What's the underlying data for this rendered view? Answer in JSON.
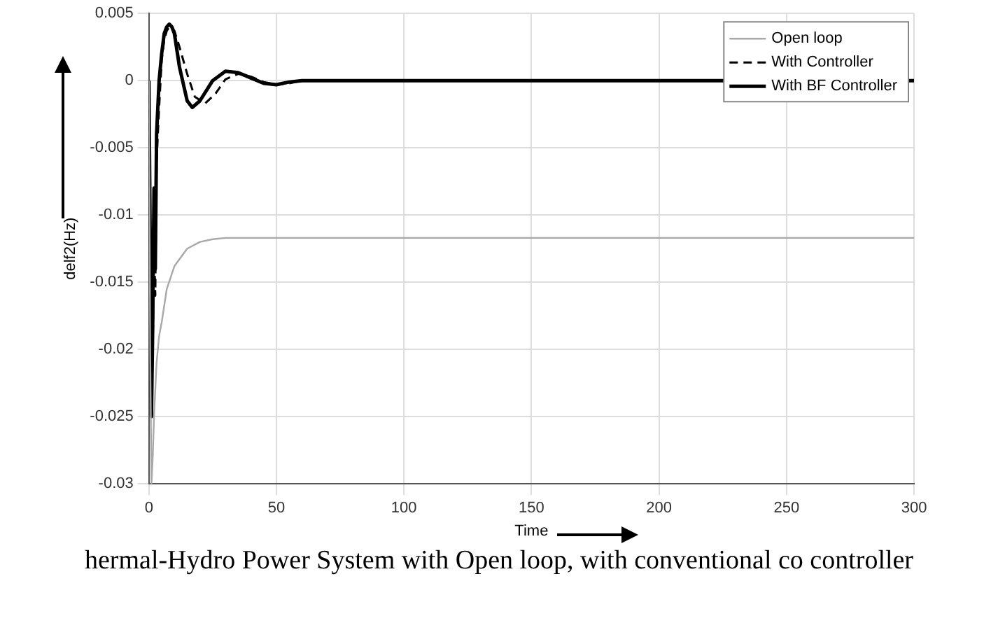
{
  "chart_data": {
    "type": "line",
    "xlabel": "Time",
    "ylabel": "delf2(Hz)",
    "annotations": [
      "hermal-Hydro Power System with Open loop, with conventional co controller"
    ],
    "xlim": [
      0,
      300
    ],
    "xticks": [
      0,
      50,
      100,
      150,
      200,
      250,
      300
    ],
    "ylim": [
      -0.03,
      0.005
    ],
    "yticks": [
      -0.03,
      -0.025,
      -0.02,
      -0.015,
      -0.01,
      -0.005,
      0,
      0.005
    ],
    "grid": true,
    "legend": "top right",
    "marker": "none",
    "series": [
      {
        "name": "Open loop",
        "color": "#a8a8a8",
        "line_style": "solid",
        "x": [
          0,
          0.5,
          1,
          1.5,
          2,
          3,
          4,
          5,
          7,
          10,
          15,
          20,
          25,
          30,
          40,
          60,
          100,
          150,
          200,
          250,
          300
        ],
        "values": [
          0,
          -0.02,
          -0.03,
          -0.028,
          -0.025,
          -0.021,
          -0.019,
          -0.018,
          -0.0155,
          -0.0138,
          -0.0125,
          -0.012,
          -0.0118,
          -0.0117,
          -0.0117,
          -0.0117,
          -0.0117,
          -0.0117,
          -0.0117,
          -0.0117,
          -0.0117
        ]
      },
      {
        "name": "With Controller",
        "color": "#000000",
        "line_style": "dashed",
        "x": [
          0,
          0.5,
          1,
          1.5,
          2,
          2.5,
          3,
          4,
          5,
          6,
          7,
          8,
          10,
          12,
          15,
          18,
          22,
          26,
          30,
          35,
          40,
          45,
          50,
          55,
          60,
          70,
          80,
          100,
          150,
          200,
          300
        ],
        "values": [
          0,
          -0.015,
          -0.024,
          -0.02,
          -0.012,
          -0.016,
          -0.006,
          -0.002,
          0.0015,
          0.003,
          0.0037,
          0.004,
          0.0037,
          0.0025,
          0.0005,
          -0.0012,
          -0.0017,
          -0.001,
          0.0001,
          0.0005,
          0.0003,
          -0.0001,
          -0.0003,
          -0.0002,
          0,
          0,
          0,
          0,
          0,
          0,
          0
        ]
      },
      {
        "name": "With BF Controller",
        "color": "#000000",
        "line_style": "solid",
        "x": [
          0,
          0.5,
          1,
          1.5,
          2,
          2.5,
          3,
          4,
          5,
          6,
          7,
          8,
          9,
          10,
          12,
          15,
          17,
          20,
          25,
          30,
          35,
          40,
          45,
          50,
          55,
          60,
          80,
          100,
          150,
          200,
          300
        ],
        "values": [
          0,
          -0.012,
          -0.025,
          -0.018,
          -0.008,
          -0.014,
          -0.004,
          0,
          0.002,
          0.0035,
          0.004,
          0.0042,
          0.004,
          0.0035,
          0.001,
          -0.0015,
          -0.002,
          -0.0015,
          0,
          0.0007,
          0.0006,
          0.0002,
          -0.0002,
          -0.0003,
          -0.0001,
          0,
          0,
          0,
          0,
          0,
          0
        ]
      }
    ]
  }
}
